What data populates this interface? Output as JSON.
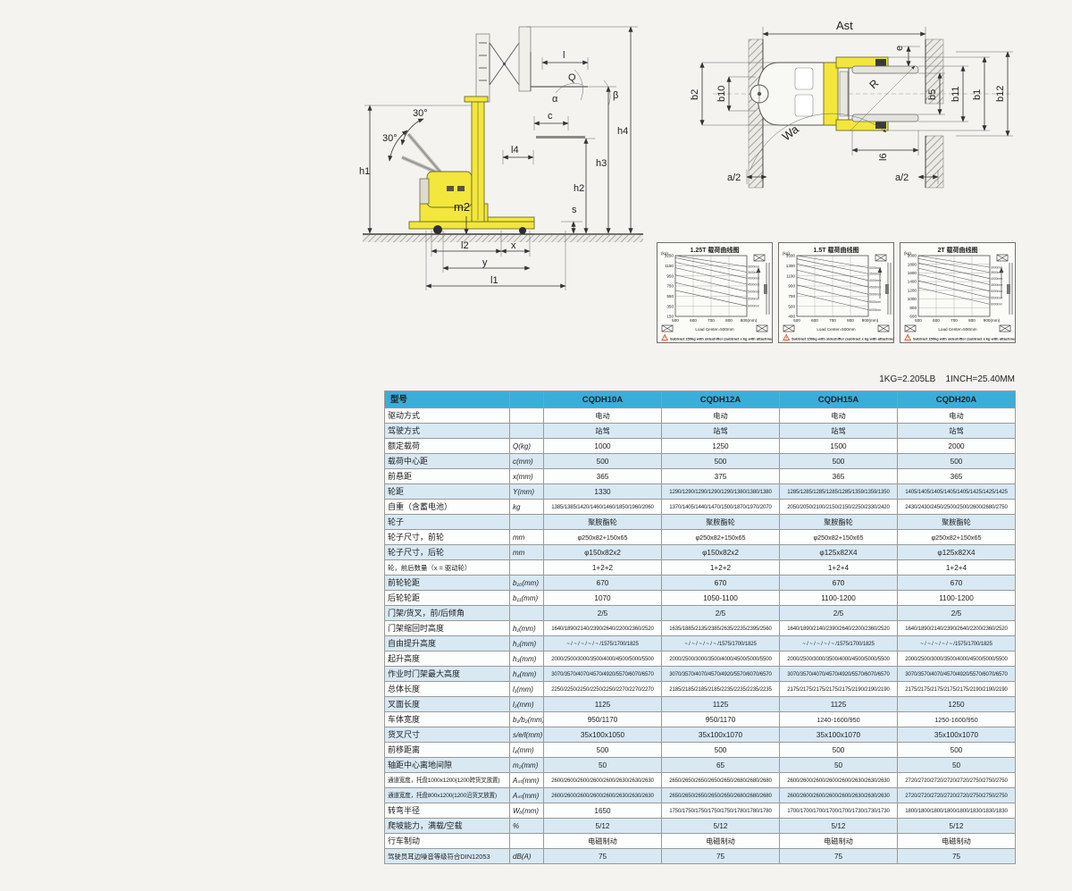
{
  "conversion_note": "1KG=2.205LB    1INCH=25.40MM",
  "diagrams": {
    "side": {
      "h1": "h1",
      "h2": "h2",
      "h3": "h3",
      "h4": "h4",
      "s": "s",
      "m2": "m2",
      "l2": "l2",
      "x": "x",
      "y": "y",
      "l1": "l1",
      "l4": "l4",
      "c": "c",
      "l": "l",
      "q": "Q",
      "alpha": "α",
      "beta": "β",
      "angle_top": "30°",
      "angle_bottom": "30°"
    },
    "top": {
      "ast": "Ast",
      "e": "e",
      "b2": "b2",
      "b10": "b10",
      "b5": "b5",
      "b11": "b11",
      "b1": "b1",
      "b12": "b12",
      "r": "R",
      "wa": "Wa",
      "l6": "l6",
      "a2_left": "a/2",
      "a2_right": "a/2"
    }
  },
  "chart_data": [
    {
      "type": "line",
      "title": "1.25T 载荷曲线图",
      "ylabel": "(kg)",
      "xlabel": "Load Center=500mm",
      "footnote": "Subtract 150kg with sideshifter (subtract x kg with attachment)",
      "x_ticks": [
        "500",
        "600",
        "700",
        "800"
      ],
      "x_last_tick": "900(mm)",
      "y_ticks": [
        1250,
        1150,
        950,
        750,
        550,
        350,
        150
      ],
      "ylim": [
        150,
        1250
      ],
      "xlim": [
        500,
        900
      ],
      "series": [
        {
          "name": "3000mm",
          "x": [
            500,
            900
          ],
          "y": [
            1250,
            1050
          ]
        },
        {
          "name": "3500mm",
          "x": [
            500,
            900
          ],
          "y": [
            1210,
            950
          ]
        },
        {
          "name": "4000mm",
          "x": [
            500,
            900
          ],
          "y": [
            1130,
            840
          ]
        },
        {
          "name": "4500mm",
          "x": [
            500,
            900
          ],
          "y": [
            1030,
            730
          ]
        },
        {
          "name": "5000mm",
          "x": [
            500,
            900
          ],
          "y": [
            900,
            600
          ]
        },
        {
          "name": "5500mm",
          "x": [
            500,
            900
          ],
          "y": [
            760,
            470
          ]
        },
        {
          "name": "6000mm",
          "x": [
            500,
            900
          ],
          "y": [
            620,
            340
          ]
        }
      ]
    },
    {
      "type": "line",
      "title": "1.5T 载荷曲线图",
      "ylabel": "(kg)",
      "xlabel": "Load Center=500mm",
      "footnote": "Subtract 150kg with sideshifter (subtract x kg with attachment)",
      "x_ticks": [
        "500",
        "600",
        "700",
        "800"
      ],
      "x_last_tick": "900(mm)",
      "y_ticks": [
        1500,
        1300,
        1100,
        900,
        700,
        500,
        400
      ],
      "ylim": [
        400,
        1500
      ],
      "xlim": [
        500,
        900
      ],
      "series": [
        {
          "name": "3000mm",
          "x": [
            500,
            900
          ],
          "y": [
            1500,
            1280
          ]
        },
        {
          "name": "3500mm",
          "x": [
            500,
            900
          ],
          "y": [
            1440,
            1170
          ]
        },
        {
          "name": "4000mm",
          "x": [
            500,
            900
          ],
          "y": [
            1350,
            1050
          ]
        },
        {
          "name": "4500mm",
          "x": [
            500,
            900
          ],
          "y": [
            1240,
            930
          ]
        },
        {
          "name": "5000mm",
          "x": [
            500,
            900
          ],
          "y": [
            1110,
            800
          ]
        },
        {
          "name": "5500mm",
          "x": [
            500,
            900
          ],
          "y": [
            970,
            660
          ]
        },
        {
          "name": "6000mm",
          "x": [
            500,
            900
          ],
          "y": [
            820,
            520
          ]
        }
      ]
    },
    {
      "type": "line",
      "title": "2T 载荷曲线图",
      "ylabel": "(kg)",
      "xlabel": "Load Center=500mm",
      "footnote": "Subtract 150kg with sideshifter (subtract x kg with attachment)",
      "x_ticks": [
        "500",
        "600",
        "700",
        "800"
      ],
      "x_last_tick": "900(mm)",
      "y_ticks": [
        2000,
        1800,
        1600,
        1400,
        1200,
        1000,
        800,
        600
      ],
      "ylim": [
        600,
        2000
      ],
      "xlim": [
        500,
        900
      ],
      "series": [
        {
          "name": "3000mm",
          "x": [
            500,
            900
          ],
          "y": [
            2000,
            1730
          ]
        },
        {
          "name": "3500mm",
          "x": [
            500,
            900
          ],
          "y": [
            1930,
            1610
          ]
        },
        {
          "name": "4000mm",
          "x": [
            500,
            900
          ],
          "y": [
            1830,
            1470
          ]
        },
        {
          "name": "4500mm",
          "x": [
            500,
            900
          ],
          "y": [
            1710,
            1330
          ]
        },
        {
          "name": "5000mm",
          "x": [
            500,
            900
          ],
          "y": [
            1570,
            1180
          ]
        },
        {
          "name": "5500mm",
          "x": [
            500,
            900
          ],
          "y": [
            1420,
            1030
          ]
        },
        {
          "name": "6000mm",
          "x": [
            500,
            900
          ],
          "y": [
            1260,
            880
          ]
        }
      ]
    }
  ],
  "table": {
    "header": {
      "model_label": "型号",
      "models": [
        "CQDH10A",
        "CQDH12A",
        "CQDH15A",
        "CQDH20A"
      ]
    },
    "rows": [
      {
        "label": "驱动方式",
        "unit": "",
        "values": [
          "电动",
          "电动",
          "电动",
          "电动"
        ]
      },
      {
        "label": "驾驶方式",
        "unit": "",
        "values": [
          "站驾",
          "站驾",
          "站驾",
          "站驾"
        ]
      },
      {
        "label": "额定载荷",
        "unit": "Q(kg)",
        "values": [
          "1000",
          "1250",
          "1500",
          "2000"
        ]
      },
      {
        "label": "载荷中心距",
        "unit": "c(mm)",
        "values": [
          "500",
          "500",
          "500",
          "500"
        ]
      },
      {
        "label": "前悬距",
        "unit": "x(mm)",
        "values": [
          "365",
          "375",
          "365",
          "365"
        ]
      },
      {
        "label": "轮距",
        "unit": "Y(mm)",
        "values": [
          "1330",
          "1290/1290/1290/1290/1290/1380/1380/1380",
          "1285/1285/1285/1285/1285/1359/1359/1350",
          "1405/1405/1405/1405/1405/1425/1425/1425"
        ]
      },
      {
        "label": "自重（含蓄电池）",
        "unit": "kg",
        "values": [
          "1385/1385/1420/1460/1460/1850/1960/2060",
          "1370/1405/1440/1470/1500/1870/1970/2070",
          "2050/2050/2100/2150/2150/2250/2330/2420",
          "2430/2430/2450/2500/2500/2600/2680/2750"
        ]
      },
      {
        "label": "轮子",
        "unit": "",
        "values": [
          "聚胺酯轮",
          "聚胺酯轮",
          "聚胺酯轮",
          "聚胺酯轮"
        ]
      },
      {
        "label": "轮子尺寸，前轮",
        "unit": "mm",
        "values": [
          "φ250x82+150x65",
          "φ250x82+150x65",
          "φ250x82+150x65",
          "φ250x82+150x65"
        ]
      },
      {
        "label": "轮子尺寸，后轮",
        "unit": "mm",
        "values": [
          "φ150x82x2",
          "φ150x82x2",
          "φ125x82X4",
          "φ125x82X4"
        ]
      },
      {
        "label": "轮，前后数量（x = 驱动轮）",
        "unit": "",
        "values": [
          "1+2+2",
          "1+2+2",
          "1+2+4",
          "1+2+4"
        ]
      },
      {
        "label": "前轮轮距",
        "unit": "b₁₀(mm)",
        "values": [
          "670",
          "670",
          "670",
          "670"
        ]
      },
      {
        "label": "后轮轮距",
        "unit": "b₁₁(mm)",
        "values": [
          "1070",
          "1050-1100",
          "1100-1200",
          "1100-1200"
        ]
      },
      {
        "label": "门架/货叉，前/后倾角",
        "unit": "",
        "values": [
          "2/5",
          "2/5",
          "2/5",
          "2/5"
        ]
      },
      {
        "label": "门架缩回时高度",
        "unit": "h₁(mm)",
        "values": [
          "1640/1890/2140/2390/2640/2200/2360/2520",
          "1635/1885/2135/2385/2635/2235/2395/2560",
          "1640/1890/2140/2390/2640/2200/2360/2520",
          "1640/1890/2140/2390/2640/2200/2360/2520"
        ]
      },
      {
        "label": "自由提升高度",
        "unit": "h₂(mm)",
        "values": [
          "~ / ~ / ~ / ~ / ~ /1575/1700/1825",
          "~ / ~ / ~ / ~ / ~ /1575/1700/1825",
          "~ / ~ / ~ / ~ / ~ /1575/1700/1825",
          "~ / ~ / ~ / ~ / ~ /1575/1700/1825"
        ]
      },
      {
        "label": "起升高度",
        "unit": "h₃(mm)",
        "values": [
          "2000/2500/3000/3500/4000/4500/5000/5500",
          "2000/2500/3000/3500/4000/4500/5000/5500",
          "2000/2500/3000/3500/4000/4500/5000/5500",
          "2000/2500/3000/3500/4000/4500/5000/5500"
        ]
      },
      {
        "label": "作业时门架最大高度",
        "unit": "h₄(mm)",
        "values": [
          "3070/3570/4070/4570/4920/5570/6070/6570",
          "3070/3570/4070/4570/4920/5570/6070/6570",
          "3070/3570/4070/4570/4920/5570/6070/6570",
          "3070/3570/4070/4570/4920/5570/6070/6570"
        ]
      },
      {
        "label": "总体长度",
        "unit": "l₁(mm)",
        "values": [
          "2250/2250/2250/2250/2250/2270/2270/2270",
          "2185/2185/2185/2185/2235/2235/2235/2235",
          "2175/2175/2175/2175/2175/2190/2190/2190",
          "2175/2175/2175/2175/2175/2190/2190/2190"
        ]
      },
      {
        "label": "叉面长度",
        "unit": "l₂(mm)",
        "values": [
          "1125",
          "1125",
          "1125",
          "1250"
        ]
      },
      {
        "label": "车体宽度",
        "unit": "b₁/b₂(mm)",
        "values": [
          "950/1170",
          "950/1170",
          "1240-1600/950",
          "1250-1600/950"
        ]
      },
      {
        "label": "货叉尺寸",
        "unit": "s/e/l(mm)",
        "values": [
          "35x100x1050",
          "35x100x1070",
          "35x100x1070",
          "35x100x1070"
        ]
      },
      {
        "label": "前移距离",
        "unit": "l₄(mm)",
        "values": [
          "500",
          "500",
          "500",
          "500"
        ]
      },
      {
        "label": "轴距中心离地间隙",
        "unit": "m₂(mm)",
        "values": [
          "50",
          "65",
          "50",
          "50"
        ]
      },
      {
        "label": "通道宽度，托盘1000x1200(1200跨货叉放置)",
        "unit": "Aₛₜ(mm)",
        "values": [
          "2600/2600/2600/2600/2600/2630/2630/2630",
          "2650/2650/2650/2650/2650/2680/2680/2680",
          "2600/2600/2600/2600/2600/2630/2630/2630",
          "2720/2720/2720/2720/2720/2750/2750/2750"
        ]
      },
      {
        "label": "通道宽度，托盘800x1200(1200沿货叉放置)",
        "unit": "Aₛₜ(mm)",
        "values": [
          "2600/2600/2600/2600/2600/2630/2630/2630",
          "2650/2650/2650/2650/2650/2680/2680/2680",
          "2600/2600/2600/2600/2600/2630/2630/2630",
          "2720/2720/2720/2720/2720/2750/2750/2750"
        ]
      },
      {
        "label": "转弯半径",
        "unit": "Wₐ(mm)",
        "values": [
          "1650",
          "1750/1750/1750/1750/1750/1780/1780/1780",
          "1700/1700/1700/1700/1700/1730/1730/1730",
          "1800/1800/1800/1800/1800/1830/1830/1830"
        ]
      },
      {
        "label": "爬坡能力，满载/空载",
        "unit": "%",
        "values": [
          "5/12",
          "5/12",
          "5/12",
          "5/12"
        ]
      },
      {
        "label": "行车制动",
        "unit": "",
        "values": [
          "电磁制动",
          "电磁制动",
          "电磁制动",
          "电磁制动"
        ]
      },
      {
        "label": "驾驶员耳边噪音等级符合DIN12053",
        "unit": "dB(A)",
        "values": [
          "75",
          "75",
          "75",
          "75"
        ]
      }
    ]
  },
  "colors": {
    "header_bg": "#3badda",
    "row_alt_bg": "#d8e9f4",
    "truck_yellow": "#f3e63c",
    "warning_orange": "#e05a28"
  }
}
